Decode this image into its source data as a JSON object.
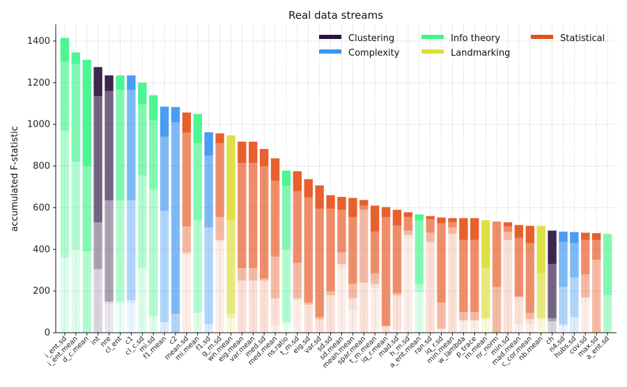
{
  "chart_data": {
    "type": "bar",
    "title": "Real data streams",
    "xlabel": "",
    "ylabel": "accumulated F-statistic",
    "ylim": [
      0,
      1480
    ],
    "yticks": [
      0,
      200,
      400,
      600,
      800,
      1000,
      1200,
      1400
    ],
    "grid": true,
    "legend_position": "top-right",
    "groups": [
      {
        "name": "Clustering",
        "color": "#2b1341"
      },
      {
        "name": "Complexity",
        "color": "#3a95f2"
      },
      {
        "name": "Info theory",
        "color": "#3ff58a"
      },
      {
        "name": "Landmarking",
        "color": "#dcdd36"
      },
      {
        "name": "Statistical",
        "color": "#e6521a"
      }
    ],
    "categories": [
      "i_ent.sd",
      "i_ent.mean",
      "d_c.mean",
      "int",
      "nre",
      "cl_ent",
      "c1",
      "cl_c.sd",
      "mi.sd",
      "f1.mean",
      "c2",
      "mean.sd",
      "mi.mean",
      "f1.sd",
      "g_m.sd",
      "wn.mean",
      "eig.mean",
      "var.mean",
      "med.sd",
      "med.mean",
      "ns.ratio",
      "t_m.sd",
      "eig.sd",
      "var.sd",
      "sd.sd",
      "sd.mean",
      "mean.mean",
      "spar.mean",
      "t_m.mean",
      "iq_r.mean",
      "mad.sd",
      "h_m.sd",
      "a_ent.mean",
      "ran.sd",
      "iq_r.sd",
      "min.mean",
      "w_lambda",
      "p_trace",
      "rn.mean",
      "nr_norm",
      "min.sd",
      "mad.mean",
      "c_cor.mean",
      "nb.mean",
      "ch",
      "n4.sd",
      "hubs.sd",
      "cov.sd",
      "max.sd",
      "a_ent.sd"
    ],
    "group_of": [
      "Info theory",
      "Info theory",
      "Info theory",
      "Clustering",
      "Clustering",
      "Info theory",
      "Complexity",
      "Info theory",
      "Info theory",
      "Complexity",
      "Complexity",
      "Statistical",
      "Info theory",
      "Complexity",
      "Statistical",
      "Landmarking",
      "Statistical",
      "Statistical",
      "Statistical",
      "Statistical",
      "Info theory",
      "Statistical",
      "Statistical",
      "Statistical",
      "Statistical",
      "Statistical",
      "Statistical",
      "Statistical",
      "Statistical",
      "Statistical",
      "Statistical",
      "Statistical",
      "Info theory",
      "Statistical",
      "Statistical",
      "Statistical",
      "Statistical",
      "Statistical",
      "Landmarking",
      "Statistical",
      "Statistical",
      "Statistical",
      "Statistical",
      "Landmarking",
      "Clustering",
      "Complexity",
      "Complexity",
      "Statistical",
      "Statistical",
      "Info theory"
    ],
    "values": [
      1415,
      1345,
      1310,
      1275,
      1235,
      1235,
      1235,
      1200,
      1140,
      1085,
      1083,
      1057,
      1050,
      962,
      957,
      947,
      917,
      917,
      882,
      837,
      778,
      775,
      737,
      707,
      660,
      652,
      647,
      637,
      610,
      603,
      590,
      578,
      568,
      560,
      553,
      550,
      550,
      550,
      540,
      533,
      530,
      517,
      513,
      513,
      490,
      485,
      483,
      480,
      478,
      473
    ],
    "segments": [
      [
        360,
        970,
        1300,
        1415
      ],
      [
        400,
        820,
        1290,
        1345
      ],
      [
        390,
        800,
        1310
      ],
      [
        305,
        530,
        1135,
        1275
      ],
      [
        140,
        150,
        635,
        1160,
        1235
      ],
      [
        140,
        150,
        635,
        1165,
        1235
      ],
      [
        140,
        155,
        635,
        1165,
        1235
      ],
      [
        310,
        755,
        1095,
        1200
      ],
      [
        80,
        690,
        1020,
        1140
      ],
      [
        50,
        585,
        940,
        1085
      ],
      [
        90,
        1010,
        1083
      ],
      [
        375,
        385,
        510,
        960,
        1057
      ],
      [
        95,
        540,
        910,
        1050
      ],
      [
        40,
        505,
        850,
        962
      ],
      [
        435,
        445,
        555,
        910,
        957
      ],
      [
        70,
        90,
        540,
        947
      ],
      [
        250,
        310,
        815,
        917
      ],
      [
        250,
        310,
        815,
        917
      ],
      [
        250,
        260,
        800,
        882
      ],
      [
        35,
        165,
        365,
        730,
        837
      ],
      [
        40,
        50,
        400,
        705,
        778
      ],
      [
        155,
        165,
        335,
        680,
        775
      ],
      [
        135,
        145,
        650,
        737
      ],
      [
        65,
        75,
        595,
        707
      ],
      [
        180,
        200,
        595,
        660
      ],
      [
        305,
        330,
        385,
        590,
        652
      ],
      [
        110,
        165,
        235,
        555,
        647
      ],
      [
        240,
        590,
        610,
        637
      ],
      [
        215,
        235,
        285,
        485,
        610
      ],
      [
        30,
        35,
        555,
        603
      ],
      [
        15,
        180,
        190,
        515,
        590
      ],
      [
        455,
        470,
        490,
        555,
        578
      ],
      [
        195,
        235,
        540,
        568
      ],
      [
        435,
        480,
        545,
        560
      ],
      [
        15,
        20,
        145,
        525,
        553
      ],
      [
        475,
        505,
        530,
        550
      ],
      [
        55,
        60,
        100,
        445,
        550
      ],
      [
        55,
        60,
        100,
        445,
        550
      ],
      [
        65,
        70,
        310,
        540
      ],
      [
        220,
        530,
        533
      ],
      [
        445,
        485,
        510,
        530
      ],
      [
        40,
        170,
        175,
        455,
        517
      ],
      [
        40,
        65,
        95,
        430,
        513
      ],
      [
        65,
        70,
        285,
        513
      ],
      [
        55,
        70,
        330,
        490
      ],
      [
        30,
        40,
        220,
        435,
        485
      ],
      [
        75,
        265,
        430,
        483
      ],
      [
        165,
        170,
        280,
        445,
        480
      ],
      [
        350,
        445,
        478
      ],
      [
        180,
        470,
        473
      ]
    ]
  }
}
